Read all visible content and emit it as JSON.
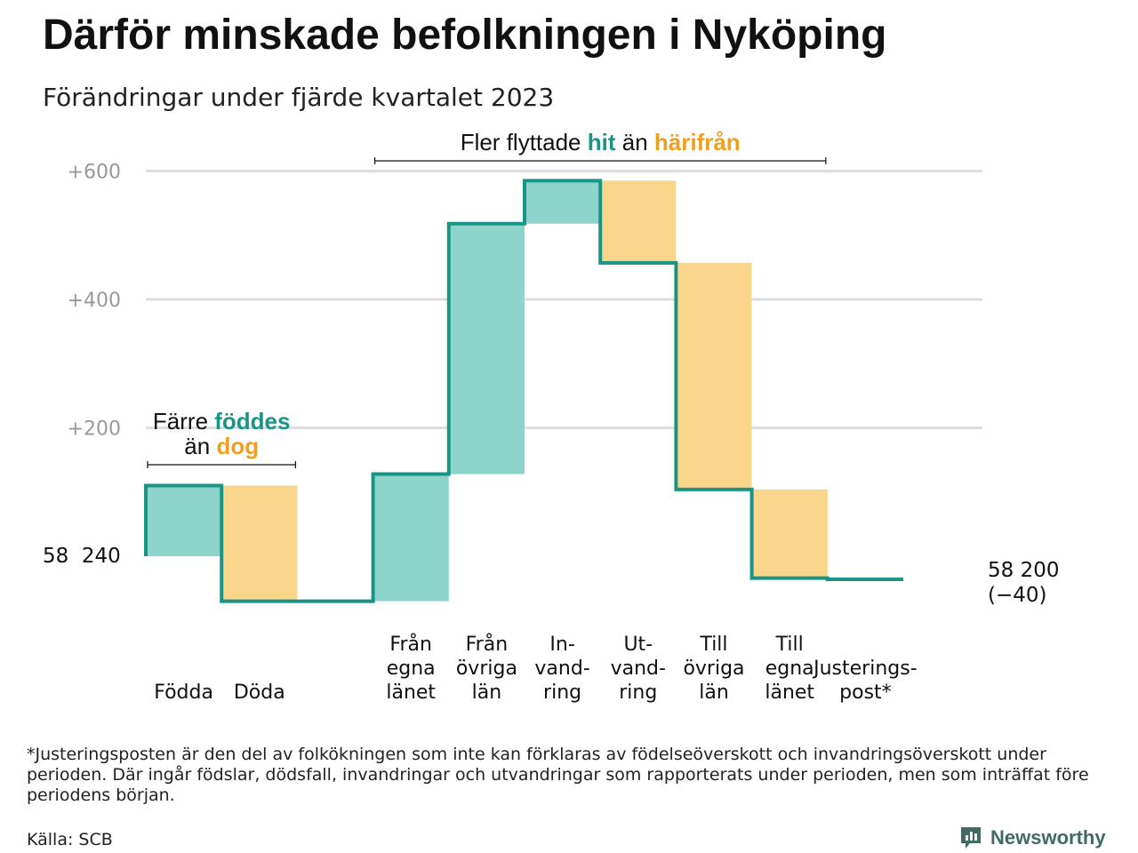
{
  "header": {
    "title": "Därför minskade befolkningen i Nyköping",
    "subtitle": "Förändringar under fjärde kvartalet 2023"
  },
  "footer": {
    "footnote": "*Justeringsposten är den del av folkökningen som inte kan förklaras av födelseöverskott och invandringsöverskott under perioden. Där ingår födslar, dödsfall, invandringar och utvandringar som rapporterats under perioden, men som inträffat före periodens början.",
    "source": "Källa: SCB",
    "brand": "Newsworthy"
  },
  "colors": {
    "increase": "#8dd4cc",
    "decrease": "#fad58c",
    "line": "#1a9585",
    "highlight_increase": "#1a9585",
    "highlight_decrease": "#f0a020",
    "grid": "#dddddd",
    "tick_text": "#999999",
    "brand": "#3f6b63"
  },
  "chart_data": {
    "type": "waterfall",
    "start_label": "58  240",
    "end_label": [
      "58 200",
      "(−40)"
    ],
    "ylim": [
      0,
      600
    ],
    "yticks": [
      {
        "value": 200,
        "label": "+200"
      },
      {
        "value": 400,
        "label": "+400"
      },
      {
        "value": 600,
        "label": "+600"
      }
    ],
    "grid": true,
    "steps": [
      {
        "label": [
          "Födda"
        ],
        "change": 110,
        "kind": "increase"
      },
      {
        "label": [
          "Döda"
        ],
        "change": -180,
        "kind": "decrease"
      },
      {
        "label": [],
        "change": 0,
        "kind": "gap"
      },
      {
        "label": [
          "Från",
          "egna",
          "länet"
        ],
        "change": 198,
        "kind": "increase"
      },
      {
        "label": [
          "Från",
          "övriga",
          "län"
        ],
        "change": 390,
        "kind": "increase"
      },
      {
        "label": [
          "In-",
          "vand-",
          "ring"
        ],
        "change": 67,
        "kind": "increase"
      },
      {
        "label": [
          "Ut-",
          "vand-",
          "ring"
        ],
        "change": -128,
        "kind": "decrease"
      },
      {
        "label": [
          "Till",
          "övriga",
          "län"
        ],
        "change": -353,
        "kind": "decrease"
      },
      {
        "label": [
          "Till",
          "egna",
          "länet"
        ],
        "change": -138,
        "kind": "decrease"
      },
      {
        "label": [
          "Justerings-",
          "post*"
        ],
        "change": -2,
        "kind": "adjustment"
      }
    ],
    "annotations": [
      {
        "lines": [
          [
            {
              "text": "Färre ",
              "style": "plain"
            },
            {
              "text": "föddes",
              "style": "increase"
            }
          ],
          [
            {
              "text": "än ",
              "style": "plain"
            },
            {
              "text": "dog",
              "style": "decrease"
            }
          ]
        ],
        "from_step": 0,
        "to_step": 1
      },
      {
        "lines": [
          [
            {
              "text": "Fler flyttade ",
              "style": "plain"
            },
            {
              "text": "hit",
              "style": "increase"
            },
            {
              "text": " än ",
              "style": "plain"
            },
            {
              "text": "härifrån",
              "style": "decrease"
            }
          ]
        ],
        "from_step": 3,
        "to_step": 8
      }
    ]
  }
}
